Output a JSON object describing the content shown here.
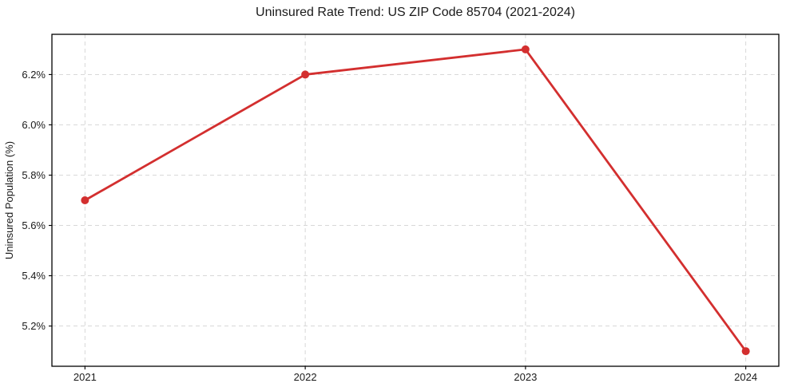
{
  "page": {
    "background": "#ffffff"
  },
  "chart_data": {
    "type": "line",
    "title": "Uninsured Rate Trend: US ZIP Code 85704 (2021-2024)",
    "xlabel": "",
    "ylabel": "Uninsured Population (%)",
    "x": [
      2021,
      2022,
      2023,
      2024
    ],
    "series": [
      {
        "name": "Uninsured Rate",
        "values": [
          5.7,
          6.2,
          6.3,
          5.1
        ],
        "color": "#d32f2f",
        "marker": "circle"
      }
    ],
    "xticks": [
      2021,
      2022,
      2023,
      2024
    ],
    "xtick_labels": [
      "2021",
      "2022",
      "2023",
      "2024"
    ],
    "yticks": [
      5.2,
      5.4,
      5.6,
      5.8,
      6.0,
      6.2
    ],
    "ytick_labels": [
      "5.2%",
      "5.4%",
      "5.6%",
      "5.8%",
      "6.0%",
      "6.2%"
    ],
    "xlim": [
      2020.85,
      2024.15
    ],
    "ylim": [
      5.04,
      6.36
    ],
    "grid": true,
    "grid_style": "dashed",
    "legend": "none",
    "colors": {
      "line": "#d32f2f",
      "grid": "#cccccc",
      "axis": "#000000",
      "text": "#1a1a1a",
      "background": "#ffffff"
    }
  }
}
